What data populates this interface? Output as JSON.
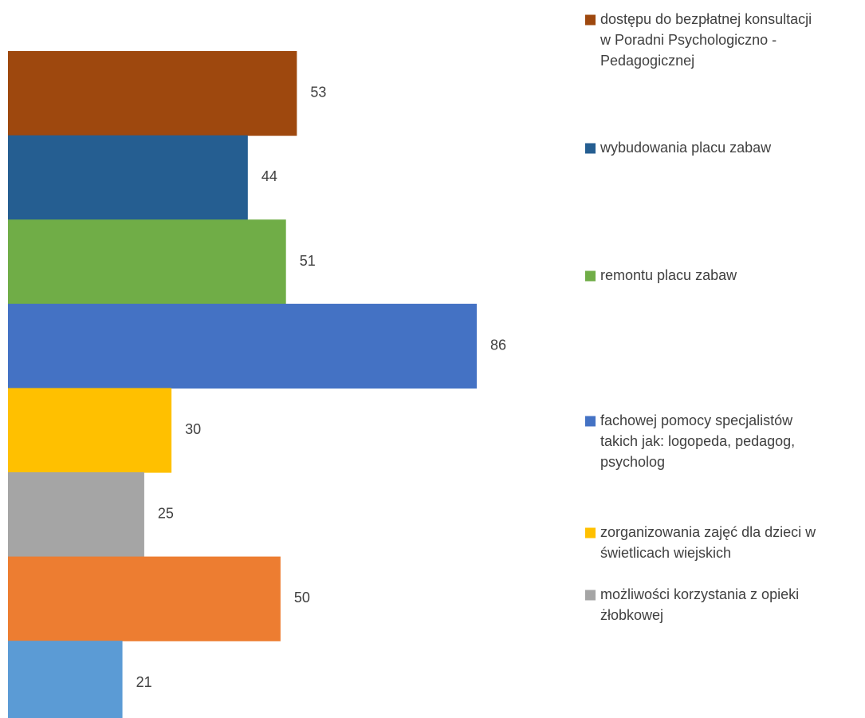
{
  "chart_data": {
    "type": "bar",
    "orientation": "horizontal",
    "title": "",
    "xlabel": "",
    "ylabel": "",
    "grid": false,
    "legend_position": "right",
    "xlim": [
      0,
      86
    ],
    "series": [
      {
        "name": "dostępu do bezpłatnej konsultacji w Poradni Psychologiczno - Pedagogicznej",
        "value": 53,
        "color": "#9E480E"
      },
      {
        "name": "wybudowania placu zabaw",
        "value": 44,
        "color": "#255E91"
      },
      {
        "name": "remontu placu zabaw",
        "value": 51,
        "color": "#70AD47"
      },
      {
        "name": "fachowej pomocy specjalistów takich jak: logopeda, pedagog, psycholog",
        "value": 86,
        "color": "#4472C4"
      },
      {
        "name": "zorganizowania zajęć dla dzieci w świetlicach wiejskich",
        "value": 30,
        "color": "#FFC000"
      },
      {
        "name": "możliwości korzystania z opieki żłobkowej",
        "value": 25,
        "color": "#A5A5A5"
      },
      {
        "name": "",
        "value": 50,
        "color": "#ED7D31"
      },
      {
        "name": "",
        "value": 21,
        "color": "#5B9BD5"
      }
    ],
    "legend_lines": [
      [
        "dostępu do bezpłatnej konsultacji",
        "w Poradni Psychologiczno -",
        "Pedagogicznej"
      ],
      [
        "wybudowania placu zabaw"
      ],
      [
        "remontu placu zabaw"
      ],
      [
        "fachowej pomocy specjalistów",
        "takich jak: logopeda, pedagog,",
        "psycholog"
      ],
      [
        "zorganizowania zajęć dla dzieci w",
        "świetlicach wiejskich"
      ],
      [
        "możliwości korzystania z opieki",
        "żłobkowej"
      ]
    ]
  }
}
